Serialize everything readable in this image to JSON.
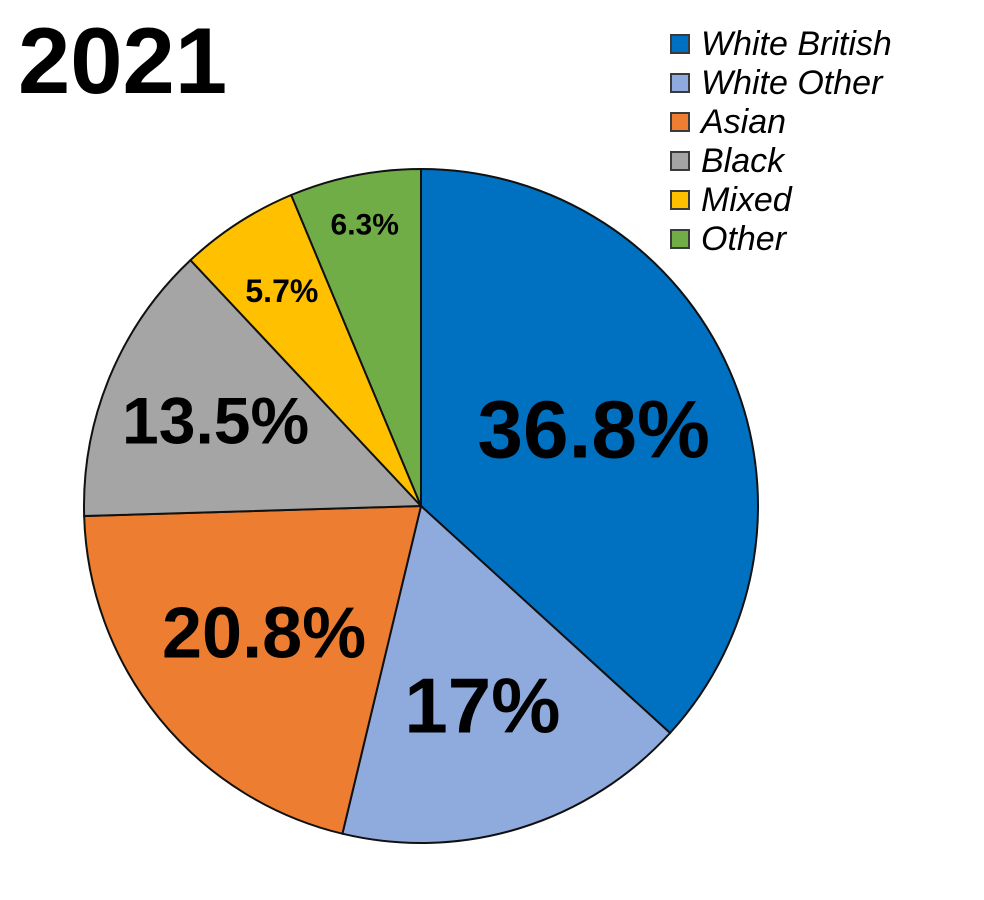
{
  "chart_data": {
    "type": "pie",
    "title": "2021",
    "legend_position": "top-right",
    "slices": [
      {
        "name": "White British",
        "value": 36.8,
        "label": "36.8%",
        "color": "#0070c0"
      },
      {
        "name": "White Other",
        "value": 17,
        "label": "17%",
        "color": "#8faadc"
      },
      {
        "name": "Asian",
        "value": 20.8,
        "label": "20.8%",
        "color": "#ed7d31"
      },
      {
        "name": "Black",
        "value": 13.5,
        "label": "13.5%",
        "color": "#a5a5a5"
      },
      {
        "name": "Mixed",
        "value": 5.7,
        "label": "5.7%",
        "color": "#ffc000"
      },
      {
        "name": "Other",
        "value": 6.3,
        "label": "6.3%",
        "color": "#70ad47"
      }
    ]
  }
}
